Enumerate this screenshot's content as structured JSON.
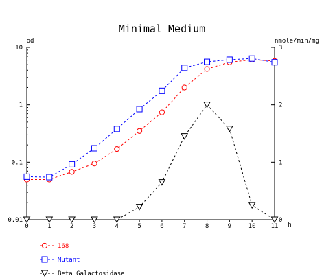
{
  "chart_data": {
    "type": "line",
    "title": "Minimal Medium",
    "y_left": {
      "label": "od",
      "scale": "log",
      "range": [
        0.01,
        10
      ],
      "ticks": [
        {
          "value": 0.01,
          "label": "0.01"
        },
        {
          "value": 0.1,
          "label": "0.1"
        },
        {
          "value": 1,
          "label": "1"
        },
        {
          "value": 10,
          "label": "10"
        }
      ]
    },
    "y_right": {
      "label": "nmole/min/mg",
      "scale": "linear",
      "range": [
        0,
        3
      ],
      "ticks": [
        {
          "value": 0,
          "label": "0"
        },
        {
          "value": 1,
          "label": "1"
        },
        {
          "value": 2,
          "label": "2"
        },
        {
          "value": 3,
          "label": "3"
        }
      ]
    },
    "x_axis": {
      "label": "h",
      "range": [
        0,
        11
      ],
      "ticks": [
        "0",
        "1",
        "2",
        "3",
        "4",
        "5",
        "6",
        "7",
        "8",
        "9",
        "10",
        "11"
      ]
    },
    "series": [
      {
        "name": "168",
        "axis": "left",
        "color": "#ff0000",
        "marker": "circle",
        "x": [
          0,
          1,
          2,
          3,
          4,
          5,
          6,
          7,
          8,
          9,
          10,
          11
        ],
        "y": [
          0.05,
          0.05,
          0.068,
          0.095,
          0.17,
          0.35,
          0.74,
          2.0,
          4.2,
          5.5,
          6.1,
          5.8
        ]
      },
      {
        "name": "Mutant",
        "axis": "left",
        "color": "#0000ff",
        "marker": "square",
        "x": [
          0,
          1,
          2,
          3,
          4,
          5,
          6,
          7,
          8,
          9,
          10,
          11
        ],
        "y": [
          0.056,
          0.055,
          0.092,
          0.175,
          0.38,
          0.84,
          1.75,
          4.4,
          5.6,
          6.1,
          6.4,
          5.5
        ]
      },
      {
        "name": "Beta Galactosidase",
        "axis": "right",
        "color": "#000000",
        "marker": "triangle-down",
        "x": [
          0,
          1,
          2,
          3,
          4,
          5,
          6,
          7,
          8,
          9,
          10,
          11
        ],
        "y": [
          0,
          0,
          0,
          0,
          0,
          0.22,
          0.65,
          1.45,
          2.0,
          1.58,
          0.25,
          0
        ]
      }
    ],
    "legend": {
      "placement": "bottom-left"
    }
  }
}
